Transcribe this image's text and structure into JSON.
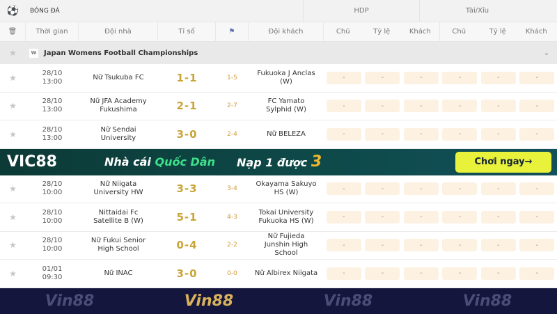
{
  "header": {
    "sport": "BÓNG ĐÁ",
    "hdp": "HDP",
    "taixiu": "Tài/Xỉu"
  },
  "columns": {
    "time": "Thời gian",
    "home": "Đội nhà",
    "score": "Tỉ số",
    "away": "Đội khách",
    "chu": "Chủ",
    "tyle": "Tỷ lệ",
    "khach": "Khách"
  },
  "league": {
    "name": "Japan Womens Football Championships",
    "logo": "W"
  },
  "matches_a": [
    {
      "date": "28/10",
      "time": "13:00",
      "home": "Nữ Tsukuba FC",
      "score": "1-1",
      "corner": "1-5",
      "away": "Fukuoka J Anclas (W)"
    },
    {
      "date": "28/10",
      "time": "13:00",
      "home": "Nữ JFA Academy Fukushima",
      "score": "2-1",
      "corner": "2-7",
      "away": "FC Yamato Sylphid (W)"
    },
    {
      "date": "28/10",
      "time": "13:00",
      "home": "Nữ Sendai University",
      "score": "3-0",
      "corner": "2-4",
      "away": "Nữ BELEZA"
    }
  ],
  "matches_b": [
    {
      "date": "28/10",
      "time": "10:00",
      "home": "Nữ Niigata University HW",
      "score": "3-3",
      "corner": "3-4",
      "away": "Okayama Sakuyo HS (W)"
    },
    {
      "date": "28/10",
      "time": "10:00",
      "home": "Nittaidai Fc Satellite B (W)",
      "score": "5-1",
      "corner": "4-3",
      "away": "Tokai University Fukuoka HS (W)"
    },
    {
      "date": "28/10",
      "time": "10:00",
      "home": "Nữ Fukui Senior High School",
      "score": "0-4",
      "corner": "2-2",
      "away": "Nữ Fujieda Junshin High School"
    },
    {
      "date": "01/01",
      "time": "09:30",
      "home": "Nữ INAC",
      "score": "3-0",
      "corner": "0-0",
      "away": "Nữ Albirex Niigata"
    }
  ],
  "odds_placeholder": "-",
  "banner1": {
    "brand": "VIC88",
    "slogan1": "Nhà cái ",
    "slogan2": "Quốc Dân",
    "promo": "Nạp 1 được ",
    "promo_num": "3",
    "cta": "Chơi ngay→"
  },
  "banner2": {
    "brand": "Vin88"
  }
}
